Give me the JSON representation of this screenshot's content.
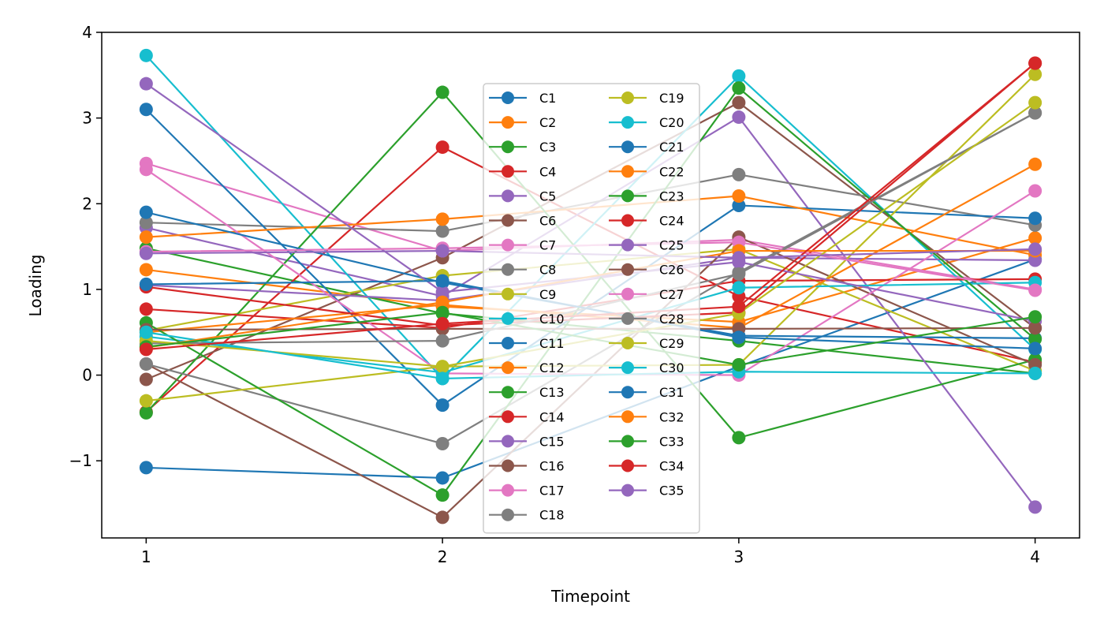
{
  "chart_data": {
    "type": "line",
    "title": "",
    "xlabel": "Timepoint",
    "ylabel": "Loading",
    "x": [
      1,
      2,
      3,
      4
    ],
    "xticks": [
      "1",
      "2",
      "3",
      "4"
    ],
    "yticks": [
      "−1",
      "0",
      "1",
      "2",
      "3",
      "4"
    ],
    "ytick_values": [
      -1,
      0,
      1,
      2,
      3,
      4
    ],
    "xlim": [
      0.85,
      4.15
    ],
    "ylim": [
      -1.9,
      4.0
    ],
    "grid": false,
    "legend_position": "center",
    "legend_columns": 2,
    "marker": "circle",
    "series": [
      {
        "name": "C1",
        "color": "#1f77b4",
        "values": [
          -1.08,
          -1.2,
          0.1,
          1.35
        ]
      },
      {
        "name": "C2",
        "color": "#ff7f0e",
        "values": [
          1.23,
          0.8,
          0.62,
          1.6
        ]
      },
      {
        "name": "C3",
        "color": "#2ca02c",
        "values": [
          1.48,
          0.72,
          0.4,
          0.02
        ]
      },
      {
        "name": "C4",
        "color": "#d62728",
        "values": [
          -0.43,
          2.66,
          0.92,
          0.15
        ]
      },
      {
        "name": "C5",
        "color": "#9467bd",
        "values": [
          1.72,
          0.92,
          3.01,
          -1.54
        ]
      },
      {
        "name": "C6",
        "color": "#8c564b",
        "values": [
          -0.05,
          1.37,
          3.18,
          0.55
        ]
      },
      {
        "name": "C7",
        "color": "#e377c2",
        "values": [
          2.47,
          1.45,
          1.58,
          1.0
        ]
      },
      {
        "name": "C8",
        "color": "#7f7f7f",
        "values": [
          1.78,
          1.68,
          2.34,
          1.75
        ]
      },
      {
        "name": "C9",
        "color": "#bcbd22",
        "values": [
          0.52,
          1.16,
          1.47,
          0.05
        ]
      },
      {
        "name": "C10",
        "color": "#17becf",
        "values": [
          3.73,
          -0.04,
          3.49,
          0.3
        ]
      },
      {
        "name": "C11",
        "color": "#1f77b4",
        "values": [
          3.1,
          -0.35,
          1.98,
          1.83
        ]
      },
      {
        "name": "C12",
        "color": "#ff7f0e",
        "values": [
          1.61,
          1.82,
          2.09,
          1.4
        ]
      },
      {
        "name": "C13",
        "color": "#2ca02c",
        "values": [
          -0.44,
          3.3,
          -0.73,
          0.18
        ]
      },
      {
        "name": "C14",
        "color": "#d62728",
        "values": [
          0.77,
          0.55,
          1.1,
          1.12
        ]
      },
      {
        "name": "C15",
        "color": "#9467bd",
        "values": [
          1.05,
          0.87,
          1.37,
          1.34
        ]
      },
      {
        "name": "C16",
        "color": "#8c564b",
        "values": [
          0.13,
          -1.66,
          1.61,
          0.12
        ]
      },
      {
        "name": "C17",
        "color": "#e377c2",
        "values": [
          2.4,
          0.02,
          0.0,
          2.15
        ]
      },
      {
        "name": "C18",
        "color": "#7f7f7f",
        "values": [
          0.13,
          -0.8,
          1.2,
          3.06
        ]
      },
      {
        "name": "C19",
        "color": "#bcbd22",
        "values": [
          -0.3,
          0.1,
          0.12,
          3.51
        ]
      },
      {
        "name": "C20",
        "color": "#17becf",
        "values": [
          0.45,
          0.03,
          1.02,
          1.08
        ]
      },
      {
        "name": "C21",
        "color": "#1f77b4",
        "values": [
          1.9,
          1.08,
          0.46,
          0.43
        ]
      },
      {
        "name": "C22",
        "color": "#ff7f0e",
        "values": [
          0.5,
          0.82,
          0.55,
          2.46
        ]
      },
      {
        "name": "C23",
        "color": "#2ca02c",
        "values": [
          0.61,
          -1.4,
          3.35,
          0.42
        ]
      },
      {
        "name": "C24",
        "color": "#d62728",
        "values": [
          1.03,
          0.58,
          0.73,
          3.64
        ]
      },
      {
        "name": "C25",
        "color": "#9467bd",
        "values": [
          3.4,
          0.97,
          1.32,
          0.63
        ]
      },
      {
        "name": "C26",
        "color": "#8c564b",
        "values": [
          0.53,
          0.54,
          0.54,
          0.55
        ]
      },
      {
        "name": "C27",
        "color": "#e377c2",
        "values": [
          1.44,
          1.48,
          1.55,
          0.99
        ]
      },
      {
        "name": "C28",
        "color": "#7f7f7f",
        "values": [
          0.37,
          0.4,
          1.18,
          3.06
        ]
      },
      {
        "name": "C29",
        "color": "#bcbd22",
        "values": [
          0.4,
          0.1,
          0.72,
          3.18
        ]
      },
      {
        "name": "C30",
        "color": "#17becf",
        "values": [
          0.5,
          -0.04,
          0.04,
          0.02
        ]
      },
      {
        "name": "C31",
        "color": "#1f77b4",
        "values": [
          1.06,
          1.1,
          0.44,
          0.31
        ]
      },
      {
        "name": "C32",
        "color": "#ff7f0e",
        "values": [
          0.32,
          0.85,
          1.45,
          1.45
        ]
      },
      {
        "name": "C33",
        "color": "#2ca02c",
        "values": [
          0.33,
          0.73,
          0.12,
          0.68
        ]
      },
      {
        "name": "C34",
        "color": "#d62728",
        "values": [
          0.3,
          0.6,
          0.8,
          3.64
        ]
      },
      {
        "name": "C35",
        "color": "#9467bd",
        "values": [
          1.42,
          1.45,
          1.37,
          1.47
        ]
      }
    ]
  }
}
